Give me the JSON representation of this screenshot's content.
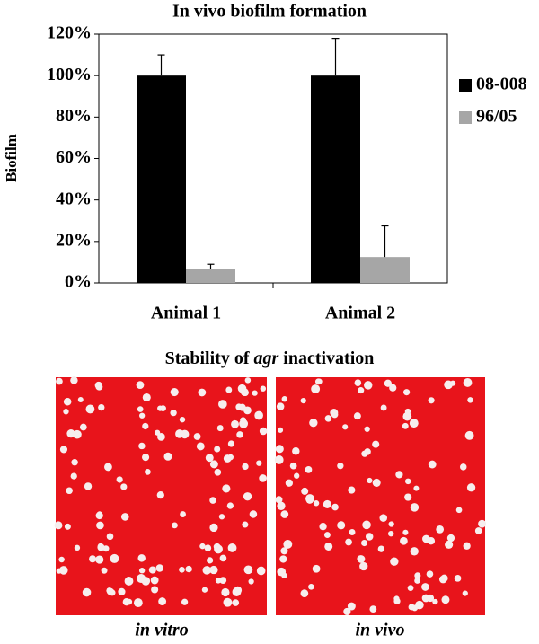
{
  "chart_data": {
    "type": "bar",
    "title": "In vivo biofilm formation",
    "y_label": "Biofilm",
    "categories": [
      "Animal 1",
      "Animal 2"
    ],
    "series": [
      {
        "name": "08-008",
        "color": "#000000",
        "values": [
          100,
          100
        ],
        "errors": [
          10,
          18
        ]
      },
      {
        "name": "96/05",
        "color": "#a6a6a6",
        "values": [
          6.5,
          12.5
        ],
        "errors": [
          2.5,
          15
        ]
      }
    ],
    "ylim": [
      0,
      120
    ],
    "yticks": [
      {
        "value": 0,
        "label": "0%"
      },
      {
        "value": 20,
        "label": "20%"
      },
      {
        "value": 40,
        "label": "40%"
      },
      {
        "value": 60,
        "label": "60%"
      },
      {
        "value": 80,
        "label": "80%"
      },
      {
        "value": 100,
        "label": "100%"
      },
      {
        "value": 120,
        "label": "120%"
      }
    ],
    "grid": false,
    "legend": "right"
  },
  "images": {
    "title_parts": [
      "Stability of ",
      "agr",
      " inactivation"
    ],
    "captions": [
      "in vitro",
      "in vivo"
    ]
  }
}
